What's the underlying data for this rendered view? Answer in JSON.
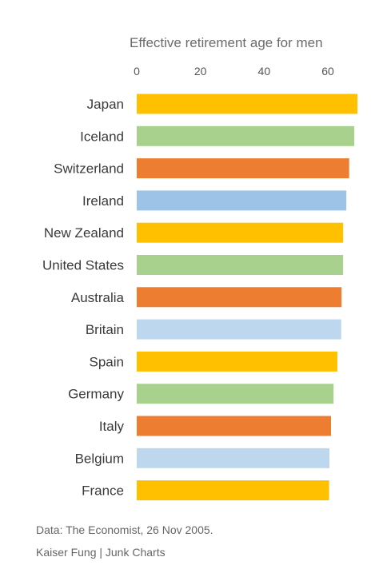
{
  "chart_data": {
    "type": "bar",
    "orientation": "horizontal",
    "title": "Effective retirement age for men",
    "xlabel": "",
    "ylabel": "",
    "xlim": [
      0,
      70
    ],
    "xticks": [
      "0",
      "20",
      "40",
      "60"
    ],
    "tick_values": [
      0,
      20,
      40,
      60
    ],
    "axis_position": "top",
    "grid": false,
    "legend": "none",
    "categories": [
      "Japan",
      "Iceland",
      "Switzerland",
      "Ireland",
      "New Zealand",
      "United States",
      "Australia",
      "Britain",
      "Spain",
      "Germany",
      "Italy",
      "Belgium",
      "France"
    ],
    "values": [
      69.3,
      68.3,
      66.7,
      65.8,
      64.8,
      64.8,
      64.3,
      64.2,
      63.0,
      61.8,
      61.0,
      60.5,
      60.4
    ],
    "colors": [
      "#FFC000",
      "#A9D18E",
      "#ED7D31",
      "#9DC3E6",
      "#FFC000",
      "#A9D18E",
      "#ED7D31",
      "#BDD7EE",
      "#FFC000",
      "#A9D18E",
      "#ED7D31",
      "#BDD7EE",
      "#FFC000"
    ]
  },
  "footer": {
    "source_line1": "Data: The Economist, 26 Nov 2005.",
    "source_line2": "Kaiser Fung | Junk Charts"
  }
}
